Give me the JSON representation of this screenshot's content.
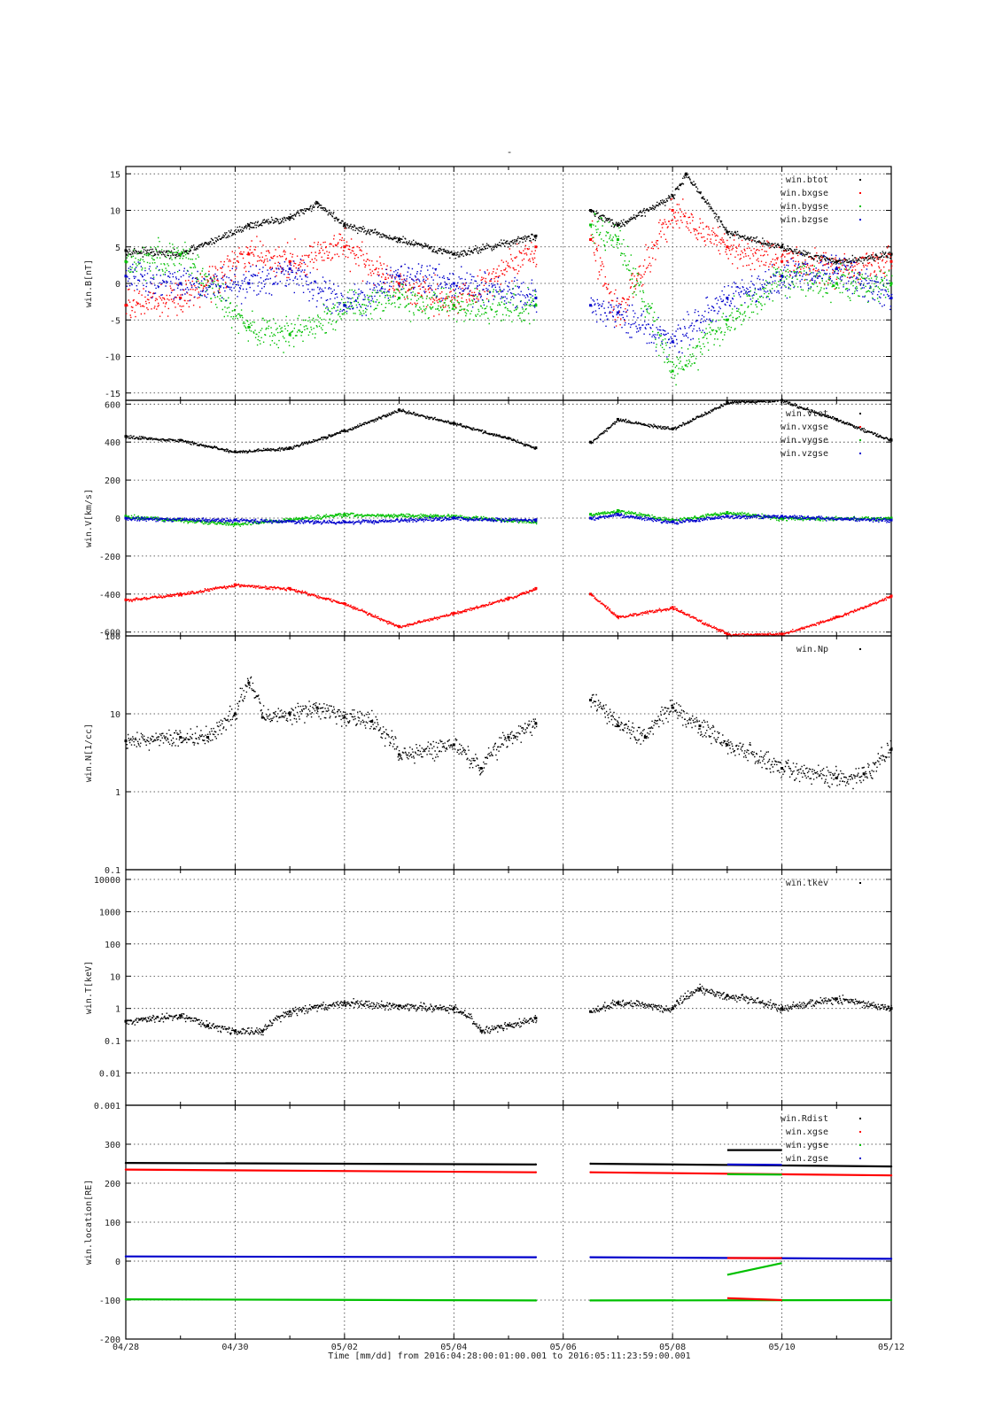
{
  "figure": {
    "title": "-",
    "xlabel": "Time [mm/dd]  from 2016:04:28:00:01:00.001  to  2016:05:11:23:59:00.001",
    "x_ticks": [
      "04/28",
      "04/30",
      "05/02",
      "05/04",
      "05/06",
      "05/08",
      "05/10",
      "05/12"
    ],
    "x_range_days": [
      "2016-04-28",
      "2016-05-12"
    ],
    "data_gap": [
      "2016-05-05 12:00",
      "2016-05-06 12:00"
    ],
    "grid": true
  },
  "chart_data": [
    {
      "type": "scatter",
      "ylabel": "win.B[nT]",
      "yscale": "linear",
      "ylim": [
        -16,
        16
      ],
      "yticks": [
        -15,
        -10,
        -5,
        0,
        5,
        10,
        15
      ],
      "legend_position": "top-right",
      "series": [
        {
          "name": "win.btot",
          "color": "#000000",
          "x": [
            "04/28",
            "04/29",
            "04/30 06h",
            "05/01",
            "05/01 12h",
            "05/02",
            "05/03",
            "05/04",
            "05/05 12h",
            "05/06 12h",
            "05/07",
            "05/08",
            "05/08 06h",
            "05/09",
            "05/10",
            "05/11",
            "05/12"
          ],
          "values": [
            4.5,
            4,
            8,
            9,
            11,
            8,
            6,
            4,
            6.5,
            10,
            8,
            12,
            15,
            7,
            5,
            3,
            4
          ]
        },
        {
          "name": "win.bxgse",
          "color": "#ff0000",
          "x": [
            "04/28",
            "04/29",
            "04/30 06h",
            "05/01",
            "05/02",
            "05/03",
            "05/04",
            "05/05 12h",
            "05/06 12h",
            "05/07",
            "05/08",
            "05/09",
            "05/10",
            "05/11",
            "05/12"
          ],
          "values": [
            -3,
            -2,
            4,
            3,
            5,
            0,
            -3,
            5,
            6,
            -4,
            10,
            5,
            3,
            2,
            3
          ]
        },
        {
          "name": "win.bygse",
          "color": "#00c000",
          "x": [
            "04/28",
            "04/29",
            "04/30 06h",
            "05/01",
            "05/02",
            "05/03",
            "05/04",
            "05/05 12h",
            "05/06 12h",
            "05/07",
            "05/08",
            "05/09",
            "05/10",
            "05/11",
            "05/12"
          ],
          "values": [
            3,
            4,
            -6,
            -7,
            -3,
            -2,
            -3,
            -3,
            8,
            6,
            -12,
            -5,
            1,
            0,
            0
          ]
        },
        {
          "name": "win.bzgse",
          "color": "#0000cc",
          "x": [
            "04/28",
            "04/29",
            "04/30 06h",
            "05/01",
            "05/02",
            "05/03",
            "05/04",
            "05/05 12h",
            "05/06 12h",
            "05/07",
            "05/08",
            "05/09",
            "05/10",
            "05/11",
            "05/12"
          ],
          "values": [
            1,
            0,
            0,
            2,
            -3,
            1,
            0,
            -2,
            -3,
            -4,
            -8,
            -2,
            1,
            2,
            -2
          ]
        }
      ]
    },
    {
      "type": "scatter",
      "ylabel": "win.V[km/s]",
      "yscale": "linear",
      "ylim": [
        -620,
        620
      ],
      "yticks": [
        -600,
        -400,
        -200,
        0,
        200,
        400,
        600
      ],
      "legend_position": "top-right",
      "series": [
        {
          "name": "win.vtot",
          "color": "#000000",
          "x": [
            "04/28",
            "04/29",
            "04/30",
            "05/01",
            "05/02",
            "05/03",
            "05/04",
            "05/05",
            "05/05 12h",
            "05/06 12h",
            "05/07",
            "05/08",
            "05/09",
            "05/10",
            "05/11",
            "05/12"
          ],
          "values": [
            430,
            410,
            350,
            370,
            460,
            570,
            500,
            420,
            370,
            400,
            520,
            470,
            610,
            620,
            520,
            410
          ]
        },
        {
          "name": "win.vxgse",
          "color": "#ff0000",
          "x": [
            "04/28",
            "04/29",
            "04/30",
            "05/01",
            "05/02",
            "05/03",
            "05/04",
            "05/05",
            "05/05 12h",
            "05/06 12h",
            "05/07",
            "05/08",
            "05/09",
            "05/10",
            "05/11",
            "05/12"
          ],
          "values": [
            -430,
            -400,
            -350,
            -370,
            -450,
            -570,
            -500,
            -420,
            -370,
            -400,
            -520,
            -470,
            -610,
            -610,
            -520,
            -410
          ]
        },
        {
          "name": "win.vygse",
          "color": "#00c000",
          "x": [
            "04/28",
            "04/30",
            "05/02",
            "05/04",
            "05/05 12h",
            "05/06 12h",
            "05/07",
            "05/08",
            "05/09",
            "05/10",
            "05/12"
          ],
          "values": [
            10,
            -30,
            20,
            10,
            -20,
            20,
            40,
            -10,
            30,
            0,
            0
          ]
        },
        {
          "name": "win.vzgse",
          "color": "#0000cc",
          "x": [
            "04/28",
            "04/30",
            "05/02",
            "05/04",
            "05/05 12h",
            "05/06 12h",
            "05/07",
            "05/08",
            "05/09",
            "05/10",
            "05/12"
          ],
          "values": [
            0,
            -10,
            -20,
            0,
            -10,
            0,
            20,
            -20,
            10,
            10,
            -10
          ]
        }
      ]
    },
    {
      "type": "scatter",
      "ylabel": "win.N[1/cc]",
      "yscale": "log",
      "ylim": [
        0.1,
        100
      ],
      "yticks": [
        0.1,
        1,
        10,
        100
      ],
      "legend_position": "top-right",
      "series": [
        {
          "name": "win.Np",
          "color": "#000000",
          "x": [
            "04/28",
            "04/29",
            "04/29 12h",
            "04/30",
            "04/30 06h",
            "04/30 12h",
            "05/01",
            "05/01 12h",
            "05/02",
            "05/02 12h",
            "05/03",
            "05/04",
            "05/04 12h",
            "05/05",
            "05/05 12h",
            "05/06 12h",
            "05/07",
            "05/07 12h",
            "05/08",
            "05/08 12h",
            "05/09",
            "05/10",
            "05/11",
            "05/11 12h",
            "05/12"
          ],
          "values": [
            4.5,
            5,
            5,
            10,
            25,
            9,
            10,
            12,
            9,
            8,
            3,
            4,
            2,
            5,
            7.5,
            15,
            7,
            5,
            12,
            7,
            4,
            2,
            1.5,
            1.7,
            3.5
          ]
        }
      ]
    },
    {
      "type": "scatter",
      "ylabel": "win.T[keV]",
      "yscale": "log",
      "ylim": [
        0.001,
        20000
      ],
      "yticks": [
        0.001,
        0.01,
        0.1,
        1,
        10,
        100,
        1000,
        10000
      ],
      "ytick_labels": [
        "0.001",
        "0.01",
        "0.1",
        "1",
        "10",
        "100",
        "1000",
        "10000"
      ],
      "legend_position": "top-right",
      "series": [
        {
          "name": "win.tkev",
          "color": "#000000",
          "x": [
            "04/28",
            "04/29",
            "04/29 12h",
            "04/30",
            "04/30 12h",
            "05/01",
            "05/02",
            "05/03",
            "05/04",
            "05/04 12h",
            "05/05",
            "05/05 12h",
            "05/06 12h",
            "05/07",
            "05/08",
            "05/08 12h",
            "05/09",
            "05/10",
            "05/11",
            "05/12"
          ],
          "values": [
            0.4,
            0.6,
            0.3,
            0.2,
            0.2,
            0.8,
            1.5,
            1.2,
            1.0,
            0.2,
            0.3,
            0.5,
            0.8,
            1.5,
            1.0,
            4,
            2.5,
            1.0,
            2.0,
            1.0
          ]
        }
      ]
    },
    {
      "type": "line",
      "ylabel": "win.location[RE]",
      "yscale": "linear",
      "ylim": [
        -200,
        400
      ],
      "yticks": [
        -200,
        -100,
        0,
        100,
        200,
        300
      ],
      "legend_position": "top-right",
      "series": [
        {
          "name": "win.Rdist",
          "color": "#000000",
          "x": [
            "04/28",
            "05/05 12h",
            "05/06 12h",
            "05/12"
          ],
          "values": [
            252,
            248,
            250,
            243
          ]
        },
        {
          "name": "win.xgse",
          "color": "#ff0000",
          "x": [
            "04/28",
            "05/05 12h",
            "05/06 12h",
            "05/12"
          ],
          "values": [
            235,
            228,
            228,
            220
          ]
        },
        {
          "name": "win.ygse",
          "color": "#00c000",
          "x": [
            "04/28",
            "05/05 12h",
            "05/06 12h",
            "05/12"
          ],
          "values": [
            -98,
            -101,
            -101,
            -100
          ]
        },
        {
          "name": "win.zgse",
          "color": "#0000cc",
          "x": [
            "04/28",
            "05/05 12h",
            "05/06 12h",
            "05/12"
          ],
          "values": [
            12,
            10,
            10,
            6
          ]
        }
      ],
      "extra_segments": [
        {
          "color": "#000000",
          "x": [
            "05/09",
            "05/10"
          ],
          "values": [
            285,
            285
          ]
        },
        {
          "color": "#0000cc",
          "x": [
            "05/09",
            "05/10"
          ],
          "values": [
            248,
            247
          ]
        },
        {
          "color": "#00c000",
          "x": [
            "05/09",
            "05/10"
          ],
          "values": [
            223,
            222
          ]
        },
        {
          "color": "#00c000",
          "x": [
            "05/09",
            "05/10"
          ],
          "values": [
            -35,
            -5
          ]
        },
        {
          "color": "#ff0000",
          "x": [
            "05/09",
            "05/10"
          ],
          "values": [
            8,
            8
          ]
        },
        {
          "color": "#ff0000",
          "x": [
            "05/09",
            "05/10"
          ],
          "values": [
            -95,
            -100
          ]
        }
      ]
    }
  ]
}
